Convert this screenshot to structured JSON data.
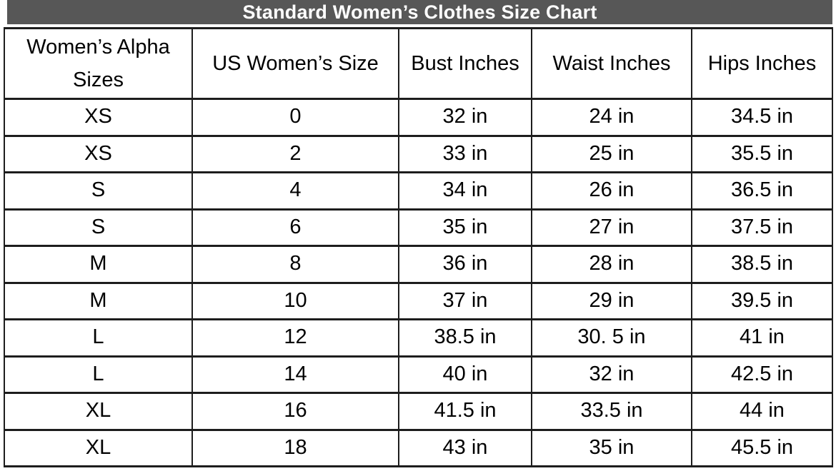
{
  "title": "Standard Women’s Clothes Size Chart",
  "colors": {
    "title_bar_bg": "#575757",
    "title_text": "#ffffff",
    "border": "#1d1d1d",
    "cell_text": "#000000",
    "cell_bg": "#ffffff"
  },
  "chart_data": {
    "type": "table",
    "title": "Standard Women’s Clothes Size Chart",
    "columns": [
      "Women’s Alpha Sizes",
      "US Women’s Size",
      "Bust Inches",
      "Waist Inches",
      "Hips Inches"
    ],
    "rows": [
      [
        "XS",
        "0",
        "32 in",
        "24 in",
        "34.5 in"
      ],
      [
        "XS",
        "2",
        "33 in",
        "25 in",
        "35.5 in"
      ],
      [
        "S",
        "4",
        "34 in",
        "26 in",
        "36.5 in"
      ],
      [
        "S",
        "6",
        "35 in",
        "27 in",
        "37.5 in"
      ],
      [
        "M",
        "8",
        "36 in",
        "28 in",
        "38.5 in"
      ],
      [
        "M",
        "10",
        "37 in",
        "29 in",
        "39.5 in"
      ],
      [
        "L",
        "12",
        "38.5 in",
        "30. 5 in",
        "41 in"
      ],
      [
        "L",
        "14",
        "40 in",
        "32 in",
        "42.5 in"
      ],
      [
        "XL",
        "16",
        "41.5 in",
        "33.5 in",
        "44 in"
      ],
      [
        "XL",
        "18",
        "43 in",
        "35 in",
        "45.5 in"
      ]
    ]
  }
}
